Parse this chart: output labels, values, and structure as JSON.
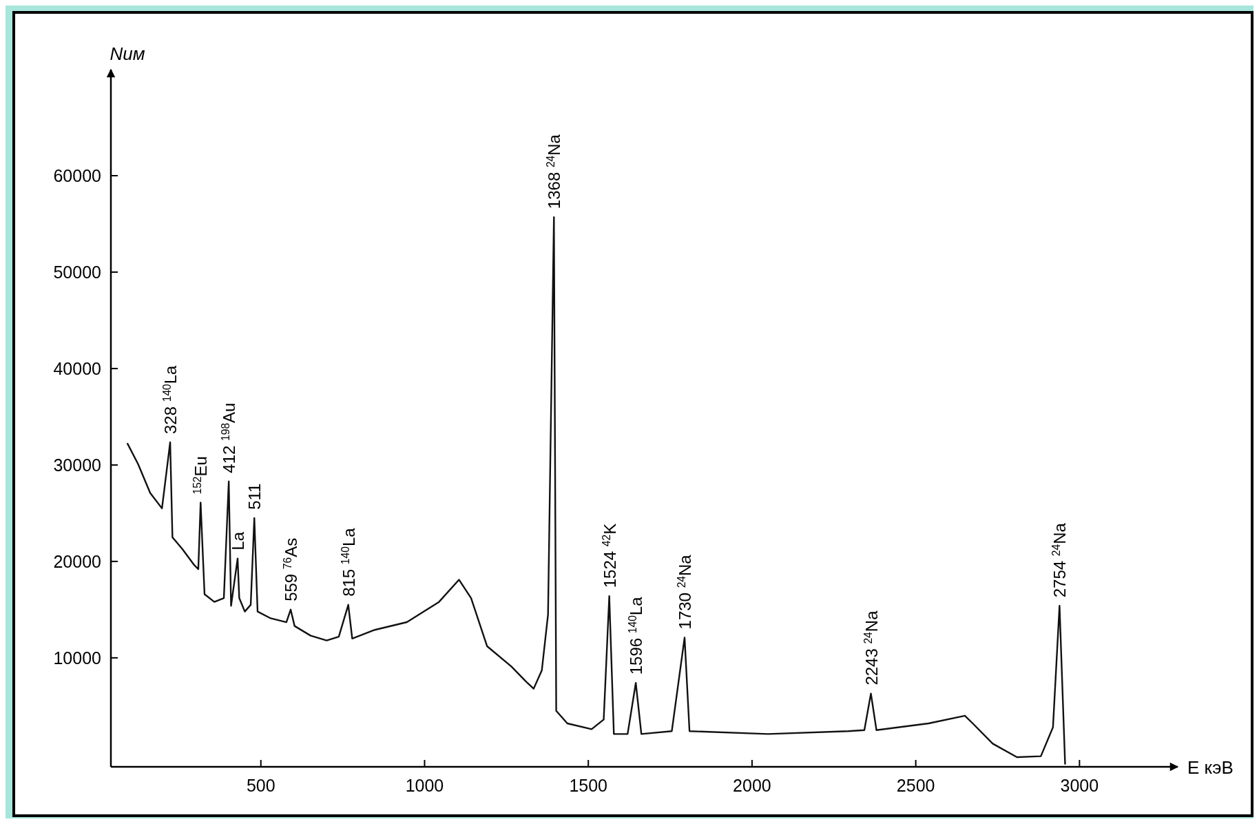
{
  "chart_data": {
    "type": "line",
    "xlabel": "E кэВ",
    "ylabel": "Nим",
    "xlim": [
      42,
      3300
    ],
    "ylim": [
      -1300,
      71000
    ],
    "xticks": [
      500,
      1000,
      1500,
      2000,
      2500,
      3000
    ],
    "yticks": [
      {
        "value": 10000,
        "label": "10000"
      },
      {
        "value": 20000,
        "label": "20000"
      },
      {
        "value": 30000,
        "label": "30000"
      },
      {
        "value": 40000,
        "label": "40000"
      },
      {
        "value": 50000,
        "label": "50000"
      },
      {
        "value": 60000,
        "label": "60000"
      }
    ],
    "grid": false,
    "line_style": "solid",
    "series": [
      {
        "color": "#111111",
        "x": [
          93,
          125,
          162,
          198,
          223,
          230,
          260,
          297,
          309,
          316,
          328,
          358,
          387,
          402,
          409,
          429,
          434,
          451,
          469,
          480,
          490,
          530,
          578,
          591,
          603,
          652,
          701,
          738,
          767,
          779,
          848,
          946,
          1044,
          1105,
          1142,
          1191,
          1265,
          1314,
          1333,
          1358,
          1377,
          1395,
          1402,
          1436,
          1510,
          1547,
          1564,
          1578,
          1620,
          1645,
          1662,
          1755,
          1794,
          1809,
          2049,
          2294,
          2343,
          2363,
          2380,
          2539,
          2650,
          2674,
          2735,
          2809,
          2882,
          2919,
          2939,
          2956
        ],
        "values": [
          32200,
          30100,
          27100,
          25500,
          32350,
          22500,
          21300,
          19600,
          19200,
          26100,
          16600,
          15800,
          16200,
          28300,
          15400,
          20300,
          16200,
          14800,
          15500,
          24500,
          14800,
          14100,
          13700,
          15000,
          13300,
          12300,
          11800,
          12200,
          15500,
          12000,
          12900,
          13700,
          15800,
          18100,
          16200,
          11200,
          9100,
          7400,
          6800,
          8700,
          14500,
          55700,
          4500,
          3200,
          2600,
          3600,
          16400,
          2100,
          2100,
          7400,
          2100,
          2400,
          12100,
          2400,
          2100,
          2400,
          2500,
          6300,
          2500,
          3200,
          4000,
          3200,
          1100,
          -300,
          -200,
          2800,
          15400,
          -1000
        ]
      }
    ],
    "annotations": [
      {
        "text": "328 $^{140}$La",
        "x": 223,
        "y": 32350
      },
      {
        "text": "$^{152}$Eu",
        "x": 316,
        "y": 26100
      },
      {
        "text": "412 $^{198}$Au",
        "x": 402,
        "y": 28300
      },
      {
        "text": "La",
        "x": 429,
        "y": 20300
      },
      {
        "text": "511",
        "x": 480,
        "y": 24500
      },
      {
        "text": "559 $^{76}$As",
        "x": 591,
        "y": 15000
      },
      {
        "text": "815 $^{140}$La",
        "x": 767,
        "y": 15500
      },
      {
        "text": "1368 $^{24}$Na",
        "x": 1395,
        "y": 55700
      },
      {
        "text": "1524 $^{42}$K",
        "x": 1564,
        "y": 16400
      },
      {
        "text": "1596 $^{140}$La",
        "x": 1645,
        "y": 7400
      },
      {
        "text": "1730 $^{24}$Na",
        "x": 1794,
        "y": 12100
      },
      {
        "text": "2243 $^{24}$Na",
        "x": 2363,
        "y": 6300
      },
      {
        "text": "2754 $^{24}$Na",
        "x": 2939,
        "y": 15400
      }
    ]
  }
}
